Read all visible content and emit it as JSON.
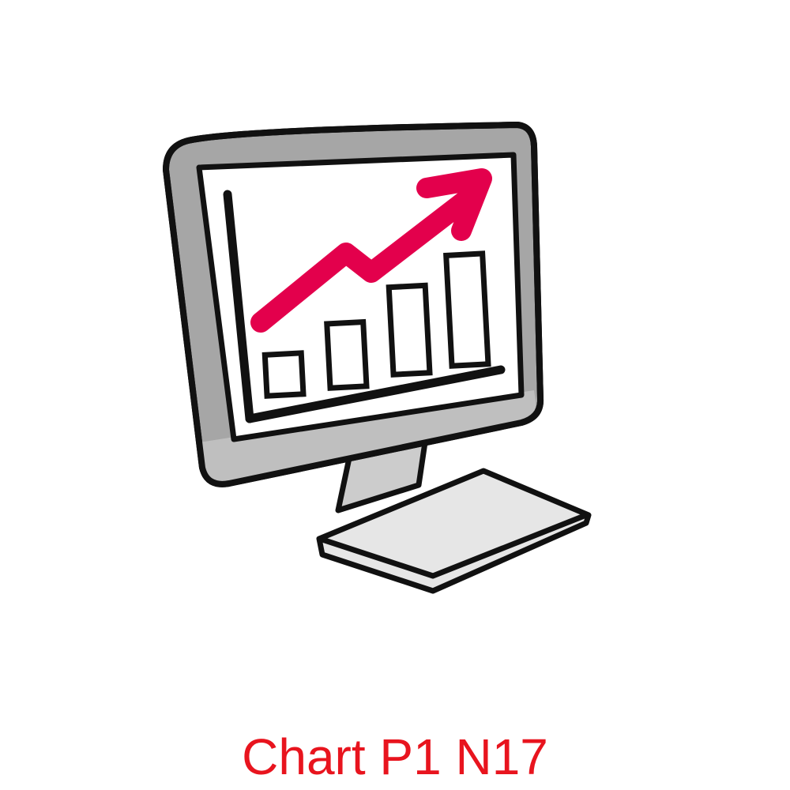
{
  "caption": "Chart P1 N17",
  "colors": {
    "caption": "#e8141e",
    "arrow": "#e3004c",
    "bezel": "#a6a6a6",
    "bezel_bottom": "#bfbfbf",
    "stand": "#cccccc",
    "keyboard": "#e6e6e6",
    "outline": "#111111",
    "screen": "#ffffff"
  },
  "icons": {
    "main": "computer-monitor-growth-chart-icon",
    "arrow": "trend-up-arrow-icon",
    "keyboard": "keyboard-icon"
  },
  "chart_data": {
    "type": "bar",
    "categories": [
      "",
      "",
      "",
      ""
    ],
    "values": [
      1,
      2,
      3,
      4
    ],
    "title": "",
    "xlabel": "",
    "ylabel": "",
    "grid": false,
    "trend_arrow": "up"
  }
}
